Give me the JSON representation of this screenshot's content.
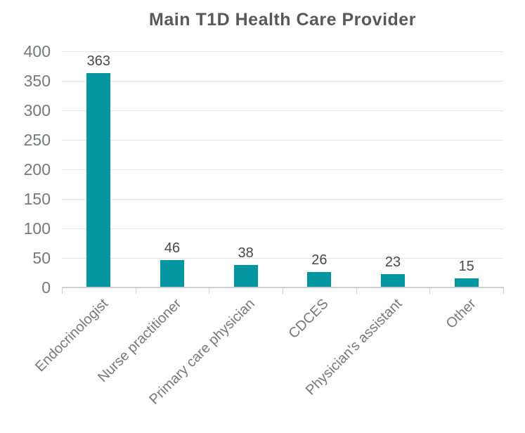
{
  "chart_data": {
    "type": "bar",
    "title": "Main T1D Health Care Provider",
    "categories": [
      "Endocrinologist",
      "Nurse practitioner",
      "Primary care physician",
      "CDCES",
      "Physician's assistant",
      "Other"
    ],
    "values": [
      363,
      46,
      38,
      26,
      23,
      15
    ],
    "xlabel": "",
    "ylabel": "",
    "ylim": [
      0,
      400
    ],
    "y_ticks": [
      400,
      350,
      300,
      250,
      200,
      150,
      100,
      50,
      0
    ],
    "grid": "horizontal-gridlines-on",
    "legend_position": "none",
    "colors": {
      "bar": "#0496a0",
      "title_text": "#58595b",
      "axis_tick_text": "#76787a",
      "value_label_text": "#48494b",
      "gridline": "#e2e4e5",
      "axis_line": "#ccd0d2"
    }
  }
}
